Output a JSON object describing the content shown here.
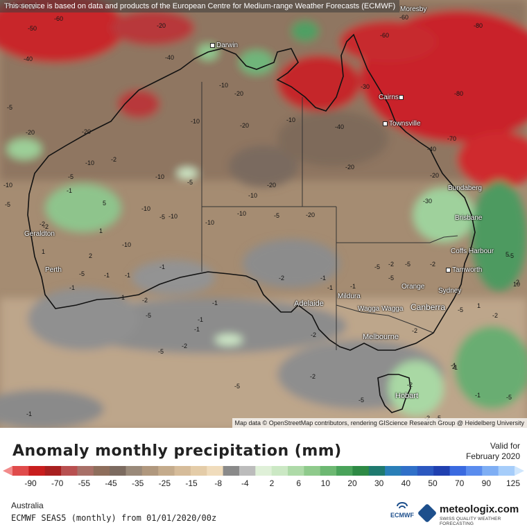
{
  "map": {
    "banner": "This service is based on data and products of the European Centre for Medium-range Weather Forecasts (ECMWF)",
    "attribution": "Map data © OpenStreetMap contributors, rendering GIScience Research Group @ Heidelberg University",
    "partial_labels": {
      "top_left": "Probolinggo",
      "top_right": "Moresby"
    },
    "cities": [
      {
        "name": "Darwin"
      },
      {
        "name": "Cairns"
      },
      {
        "name": "Townsville"
      },
      {
        "name": "Bundaberg"
      },
      {
        "name": "Brisbane"
      },
      {
        "name": "Coffs Harbour"
      },
      {
        "name": "Tamworth"
      },
      {
        "name": "Orange"
      },
      {
        "name": "Sydney"
      },
      {
        "name": "Canberra"
      },
      {
        "name": "Wagga Wagga"
      },
      {
        "name": "Mildura"
      },
      {
        "name": "Adelaide"
      },
      {
        "name": "Melbourne"
      },
      {
        "name": "Hobart"
      },
      {
        "name": "Geraldton"
      },
      {
        "name": "Perth"
      }
    ],
    "contour_labels": [
      "-60",
      "-50",
      "-40",
      "-20",
      "-40",
      "-60",
      "-80",
      "-60",
      "-80",
      "-70",
      "-10",
      "-20",
      "-10",
      "-30",
      "-20",
      "-5",
      "-20",
      "-40",
      "-10",
      "-10",
      "-20",
      "-20",
      "-2",
      "-10",
      "-20",
      "-30",
      "-40",
      "-20",
      "-5",
      "-1",
      "-5",
      "-10",
      "-10",
      "-5",
      "-10",
      "-10",
      "-10",
      "-20",
      "-2",
      "-10",
      "-5",
      "-10",
      "5",
      "1",
      "-2",
      "1",
      "2",
      "-1",
      "-5",
      "-1",
      "-1",
      "-1",
      "-2",
      "-2",
      "-5",
      "-1",
      "-1",
      "-2",
      "-5",
      "-1",
      "-2",
      "-5",
      "-1",
      "-2",
      "-5",
      "2",
      "1",
      "-2",
      "-2",
      "-5",
      "-5",
      "-2",
      "-1",
      "-1",
      "-5",
      "-2",
      "-5",
      "-5",
      "-1",
      "-2",
      "-5",
      "-5",
      "10",
      "5",
      "2",
      "1",
      "-1",
      "-1",
      "-5",
      "-1",
      "-2"
    ]
  },
  "title": "Anomaly monthly precipitation (mm)",
  "valid": {
    "line1": "Valid for",
    "line2": "February 2020"
  },
  "colorbar": {
    "colors": [
      "#f28b8b",
      "#e04b4b",
      "#c81e1e",
      "#a82020",
      "#b85050",
      "#a87068",
      "#8e6e5c",
      "#7c6b60",
      "#9a8a7a",
      "#b0987e",
      "#c4ab8c",
      "#d6bc9a",
      "#e4cca8",
      "#f0dcbc",
      "#8a8a8a",
      "#bcbcbc",
      "#dff0d8",
      "#cbe8c4",
      "#aedaa8",
      "#8fca8c",
      "#6db872",
      "#4aa35a",
      "#2e8a45",
      "#1f7a6f",
      "#2a7fb8",
      "#3070c8",
      "#2c58c0",
      "#2040b0",
      "#3a6ae0",
      "#5a8cee",
      "#7eaef4",
      "#a6cdfa",
      "#cfe6fd"
    ],
    "ticks": [
      "-90",
      "-70",
      "-55",
      "-45",
      "-35",
      "-25",
      "-15",
      "-8",
      "-4",
      "2",
      "6",
      "10",
      "20",
      "30",
      "40",
      "50",
      "70",
      "90",
      "125"
    ]
  },
  "footer": {
    "region": "Australia",
    "model": "ECMWF SEAS5 (monthly) from 01/01/2020/00z",
    "ecmwf": "ECMWF",
    "brand": "meteologix.com",
    "tagline": "SWISS QUALITY WEATHER FORECASTING"
  }
}
